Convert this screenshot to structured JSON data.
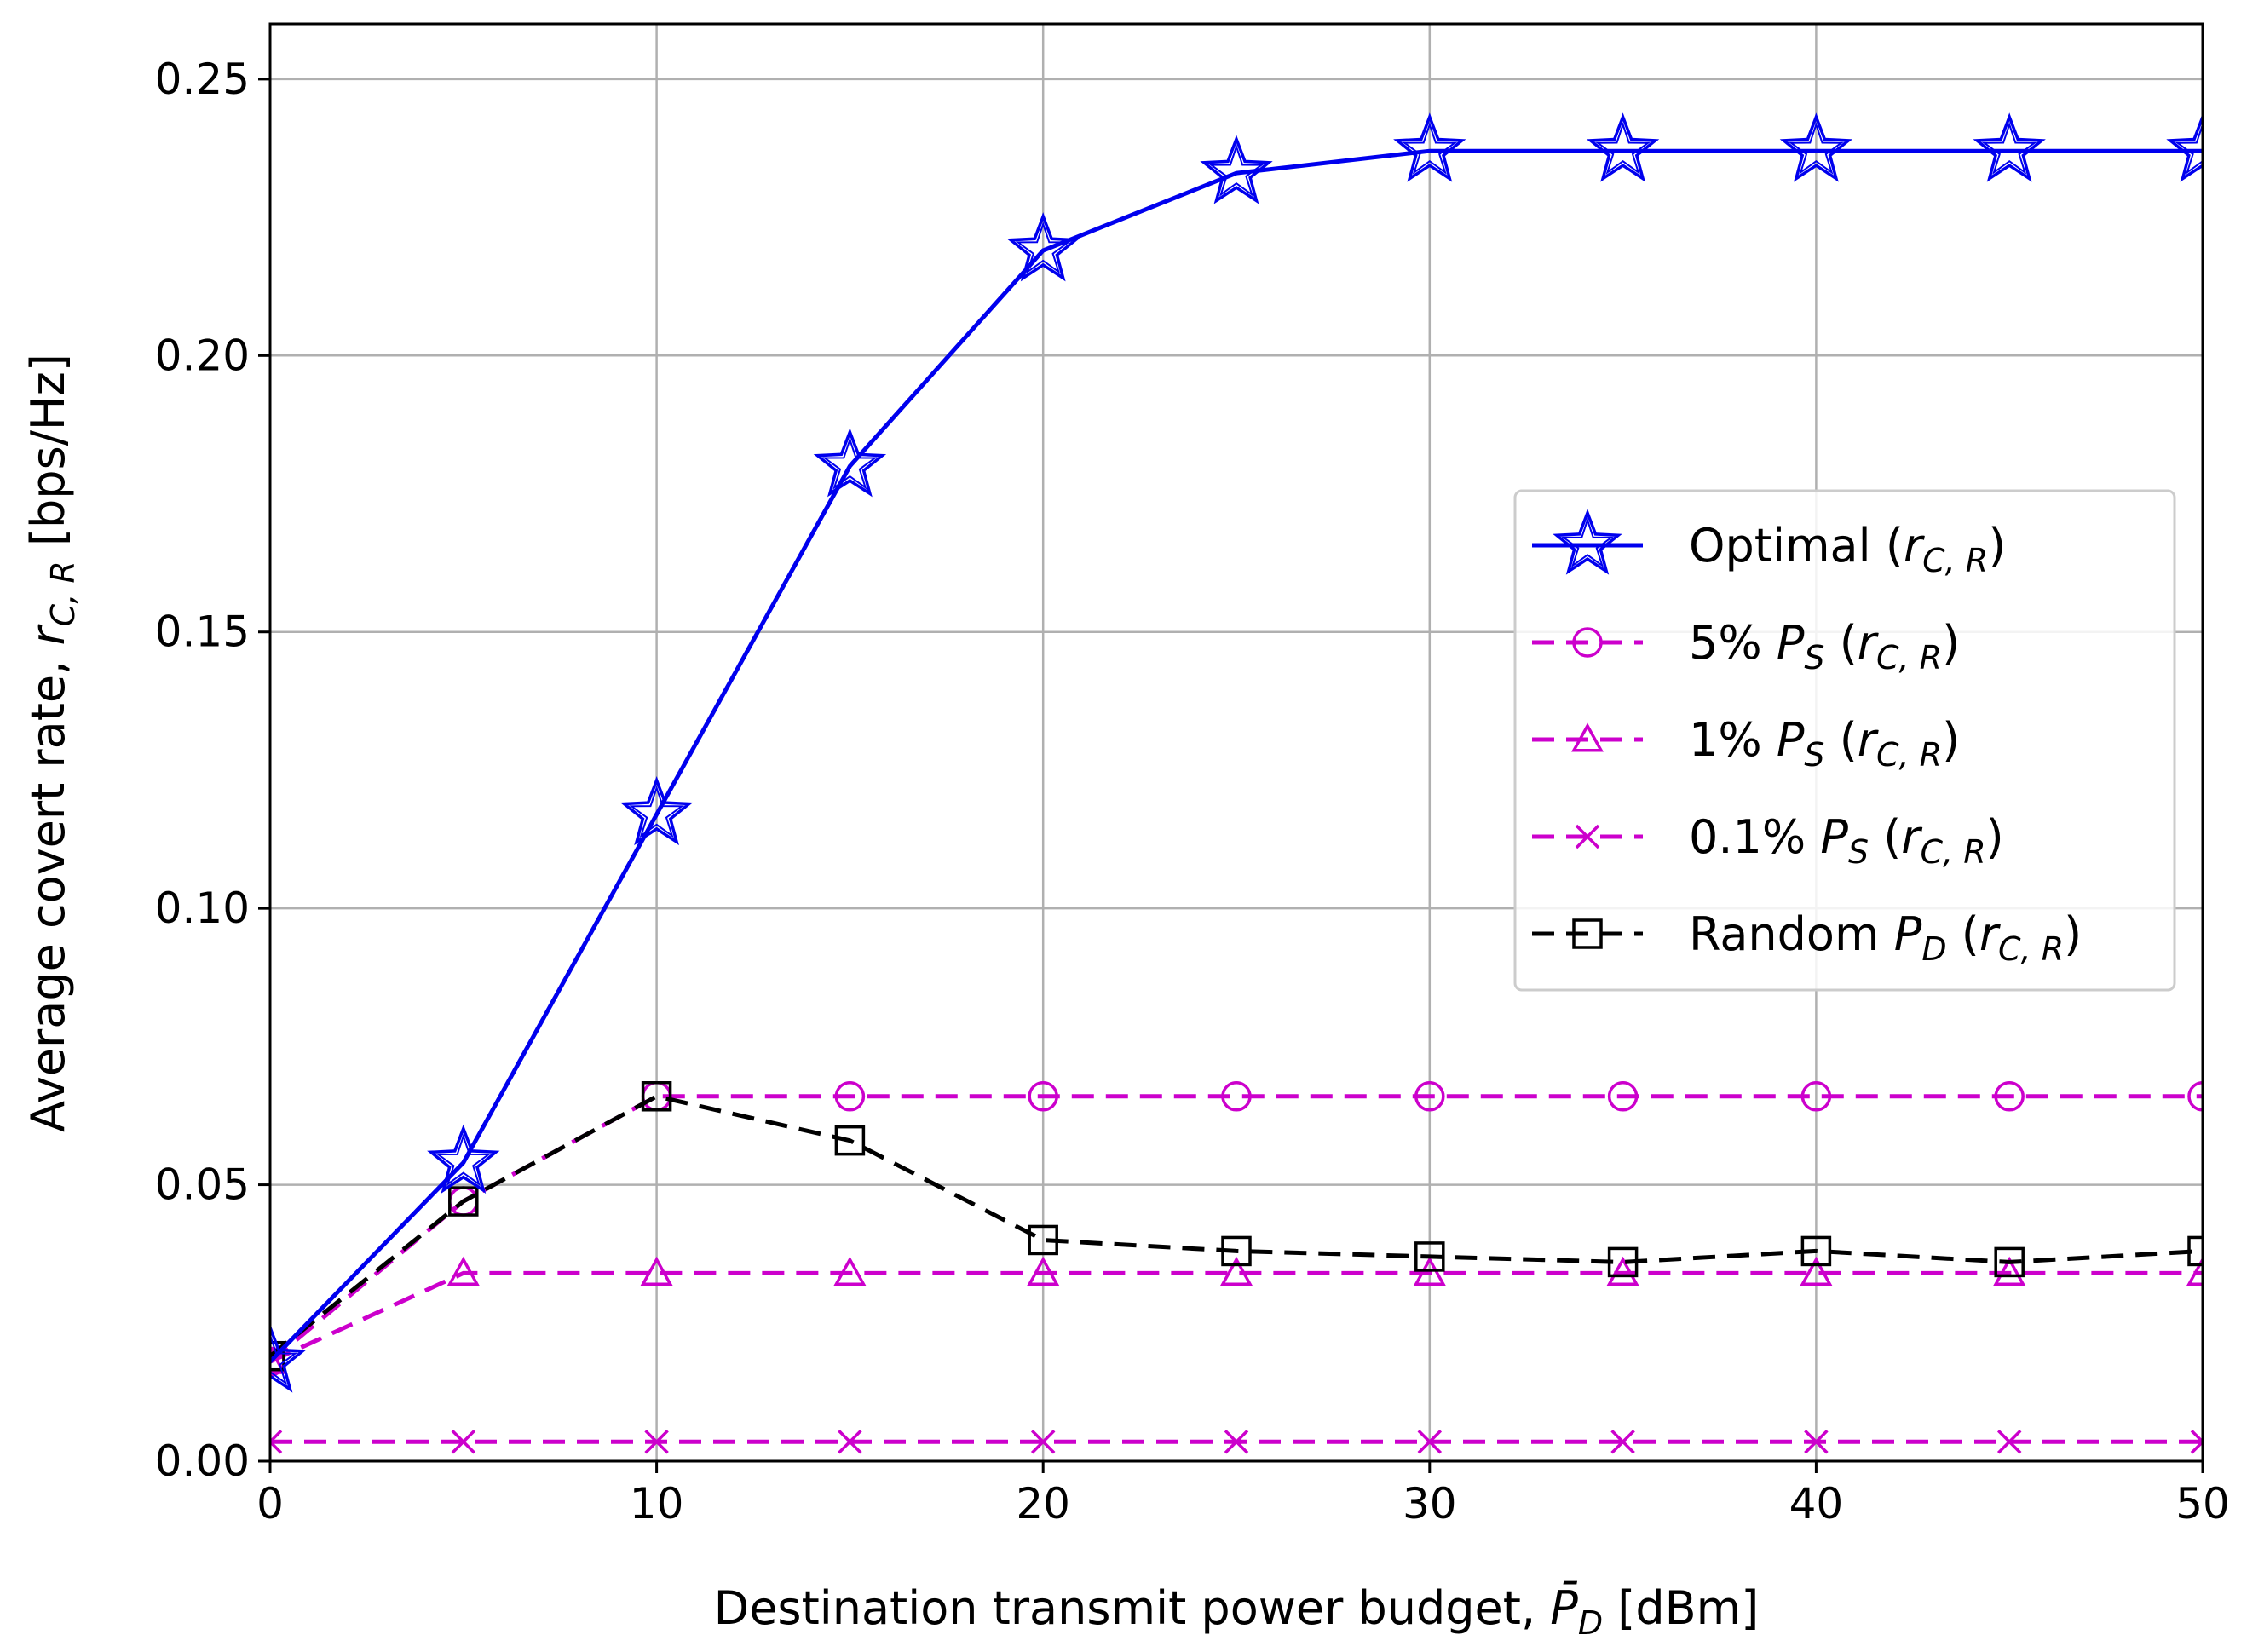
{
  "chart_data": {
    "type": "line",
    "title": "",
    "xlabel": "Destination transmit power budget, P̄_D [dBm]",
    "ylabel": "Average covert rate, r_C,R [bps/Hz]",
    "xlabel_parts": {
      "pre": "Destination transmit power budget, ",
      "sym": "P̄",
      "sub": "D",
      "post": " [dBm]"
    },
    "ylabel_parts": {
      "pre": "Average covert rate, ",
      "sym": "r",
      "sub": "C, R",
      "post": " [bps/Hz]"
    },
    "xlim": [
      0,
      50
    ],
    "ylim": [
      0,
      0.26
    ],
    "xticks": [
      "0",
      "10",
      "20",
      "30",
      "40",
      "50"
    ],
    "yticks": [
      "0.00",
      "0.05",
      "0.10",
      "0.15",
      "0.20",
      "0.25"
    ],
    "grid": true,
    "legend_position": "center-right",
    "x": [
      0,
      5,
      10,
      15,
      20,
      25,
      30,
      35,
      40,
      45,
      50
    ],
    "series": [
      {
        "name": "Optimal (r_C,R)",
        "label_parts": {
          "pre": "Optimal (",
          "sym": "r",
          "sub": "C, R",
          "post": ")"
        },
        "color": "#0000ee",
        "linestyle": "solid",
        "marker": "star",
        "values": [
          0.018,
          0.054,
          0.117,
          0.18,
          0.219,
          0.233,
          0.237,
          0.237,
          0.237,
          0.237,
          0.237
        ]
      },
      {
        "name": "5% P_S (r_C,R)",
        "label_parts": {
          "pre": "5% ",
          "sym": "P",
          "sub": "S",
          "mid": " (",
          "sym2": "r",
          "sub2": "C, R",
          "post": ")"
        },
        "color": "#cc00cc",
        "linestyle": "dashed",
        "marker": "circle",
        "values": [
          0.018,
          0.047,
          0.066,
          0.066,
          0.066,
          0.066,
          0.066,
          0.066,
          0.066,
          0.066,
          0.066
        ]
      },
      {
        "name": "1% P_S (r_C,R)",
        "label_parts": {
          "pre": "1% ",
          "sym": "P",
          "sub": "S",
          "mid": " (",
          "sym2": "r",
          "sub2": "C, R",
          "post": ")"
        },
        "color": "#cc00cc",
        "linestyle": "dashed",
        "marker": "triangle",
        "values": [
          0.018,
          0.034,
          0.034,
          0.034,
          0.034,
          0.034,
          0.034,
          0.034,
          0.034,
          0.034,
          0.034
        ]
      },
      {
        "name": "0.1% P_S (r_C,R)",
        "label_parts": {
          "pre": "0.1% ",
          "sym": "P",
          "sub": "S",
          "mid": " (",
          "sym2": "r",
          "sub2": "C, R",
          "post": ")"
        },
        "color": "#cc00cc",
        "linestyle": "dashed",
        "marker": "x",
        "values": [
          0.0035,
          0.0035,
          0.0035,
          0.0035,
          0.0035,
          0.0035,
          0.0035,
          0.0035,
          0.0035,
          0.0035,
          0.0035
        ]
      },
      {
        "name": "Random P_D (r_C,R)",
        "label_parts": {
          "pre": "Random ",
          "sym": "P",
          "sub": "D",
          "mid": " (",
          "sym2": "r",
          "sub2": "C, R",
          "post": ")"
        },
        "color": "#000000",
        "linestyle": "dashed",
        "marker": "square",
        "values": [
          0.019,
          0.047,
          0.066,
          0.058,
          0.04,
          0.038,
          0.037,
          0.036,
          0.038,
          0.036,
          0.038
        ]
      }
    ]
  }
}
